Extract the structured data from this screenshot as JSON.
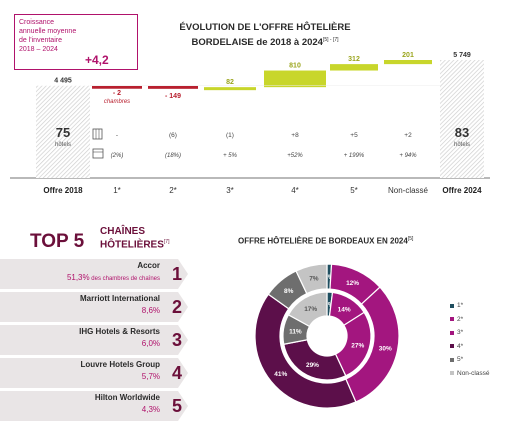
{
  "growth_box": {
    "text_lines": [
      "Croissance",
      "annuelle moyenne",
      "de l'inventaire",
      "2018 – 2024"
    ],
    "value": "+4,2",
    "unit": "%"
  },
  "waterfall": {
    "title_line1": "ÉVOLUTION DE L'OFFRE HÔTELIÈRE",
    "title_line2": "BORDELAISE de 2018 à 2024",
    "title_refs": "[5] - [7]",
    "start": {
      "label": "Offre 2018",
      "rooms": 4495,
      "rooms_text": "4 495",
      "hotels": "75",
      "hotels_label": "hôtels"
    },
    "end": {
      "label": "Offre 2024",
      "rooms": 5749,
      "rooms_text": "5 749",
      "hotels": "83",
      "hotels_label": "hôtels"
    },
    "steps": [
      {
        "category": "1*",
        "delta": -2,
        "delta_text": "- 2",
        "delta_unit": "chambres",
        "hotels_change": "-",
        "pct_change": "(2%)"
      },
      {
        "category": "2*",
        "delta": -149,
        "delta_text": "- 149",
        "delta_unit": "",
        "hotels_change": "(6)",
        "pct_change": "(18%)"
      },
      {
        "category": "3*",
        "delta": 82,
        "delta_text": "82",
        "delta_unit": "",
        "hotels_change": "(1)",
        "pct_change": "+ 5%"
      },
      {
        "category": "4*",
        "delta": 810,
        "delta_text": "810",
        "delta_unit": "",
        "hotels_change": "+8",
        "pct_change": "+52%"
      },
      {
        "category": "5*",
        "delta": 312,
        "delta_text": "312",
        "delta_unit": "",
        "hotels_change": "+5",
        "pct_change": "+ 199%"
      },
      {
        "category": "Non-classé",
        "delta": 201,
        "delta_text": "201",
        "delta_unit": "",
        "hotels_change": "+2",
        "pct_change": "+ 94%"
      }
    ],
    "icons": [
      "hotel-building-icon",
      "percentage-bed-icon"
    ],
    "colors": {
      "negative": "#b8202f",
      "positive": "#c8d62b",
      "total_hatch": "#d8d8d8"
    }
  },
  "chart_data": [
    {
      "type": "bar",
      "categories": [
        "Offre 2018",
        "1*",
        "2*",
        "3*",
        "4*",
        "5*",
        "Non-classé",
        "Offre 2024"
      ],
      "values": [
        4495,
        -2,
        -149,
        82,
        810,
        312,
        201,
        5749
      ],
      "title": "ÉVOLUTION DE L'OFFRE HÔTELIÈRE BORDELAISE de 2018 à 2024"
    },
    {
      "type": "pie",
      "title": "OFFRE HÔTELIÈRE DE BORDEAUX EN 2024",
      "labels": [
        "1*",
        "2*",
        "3*",
        "4*",
        "5*",
        "Non-classé"
      ],
      "series": [
        {
          "values": [
            1,
            12,
            30,
            41,
            8,
            7
          ]
        },
        {
          "values": [
            2,
            14,
            27,
            29,
            11,
            17
          ]
        }
      ]
    }
  ],
  "top5": {
    "title": "TOP 5",
    "subtitle_line1": "CHAÎNES",
    "subtitle_line2": "HÔTELIÈRES",
    "subtitle_ref": "[7]",
    "chains": [
      {
        "rank": "1",
        "name": "Accor",
        "share": "51,3%",
        "share_note": "des chambres de chaînes"
      },
      {
        "rank": "2",
        "name": "Marriott International",
        "share": "8,6%",
        "share_note": ""
      },
      {
        "rank": "3",
        "name": "IHG Hotels & Resorts",
        "share": "6,0%",
        "share_note": ""
      },
      {
        "rank": "4",
        "name": "Louvre Hotels Group",
        "share": "5,7%",
        "share_note": ""
      },
      {
        "rank": "5",
        "name": "Hilton Worldwide",
        "share": "4,3%",
        "share_note": ""
      }
    ]
  },
  "donut": {
    "title": "OFFRE HÔTELIÈRE DE BORDEAUX EN 2024",
    "title_ref": "[5]",
    "outer_labels": [
      "1%",
      "12%",
      "30%",
      "41%",
      "8%",
      "7%"
    ],
    "inner_labels": [
      "2%",
      "14%",
      "27%",
      "29%",
      "11%",
      "17%"
    ],
    "legend": [
      "1*",
      "2*",
      "3*",
      "4*",
      "5*",
      "Non-classé"
    ],
    "colors": [
      "#1f4e5f",
      "#a3167f",
      "#a3167f",
      "#5c0f4a",
      "#6e6e6e",
      "#c4c4c4"
    ]
  }
}
